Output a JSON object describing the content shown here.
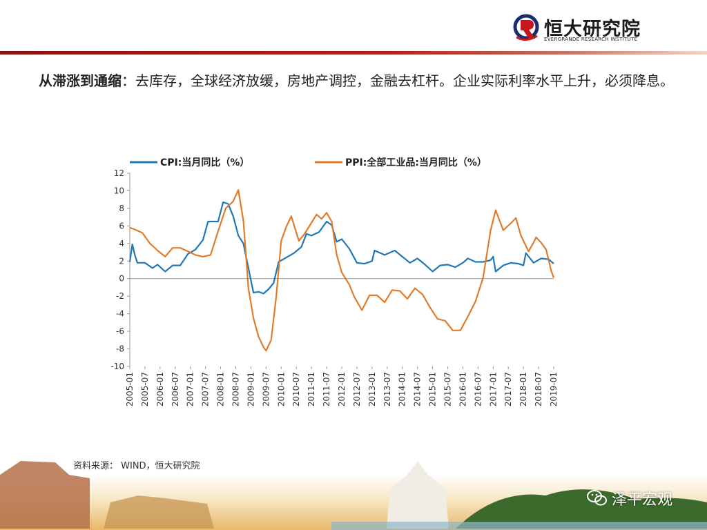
{
  "header": {
    "logo_cn": "恒大研究院",
    "logo_en": "EVERGRANDE RESEARCH INSTITUTE"
  },
  "headline": {
    "bold": "从滞涨到通缩",
    "text": "：去库存，全球经济放缓，房地产调控，金融去杠杆。企业实际利率水平上升，必须降息。"
  },
  "source": "资料来源： WIND，恒大研究院",
  "watermark": "泽平宏观",
  "colors": {
    "cpi": "#1f77b4",
    "ppi": "#e07b2a",
    "brand_red": "#b22218"
  },
  "chart_data": {
    "type": "line",
    "legend_position": "top",
    "grid": false,
    "ylim": [
      -10,
      12
    ],
    "yticks": [
      12,
      10,
      8,
      6,
      4,
      2,
      0,
      -2,
      -4,
      -6,
      -8,
      -10
    ],
    "x_start": "2005-01",
    "x_end": "2019-01",
    "xticks": [
      "2005-01",
      "2005-07",
      "2006-01",
      "2006-07",
      "2007-01",
      "2007-07",
      "2008-01",
      "2008-07",
      "2009-01",
      "2009-07",
      "2010-01",
      "2010-07",
      "2011-01",
      "2011-07",
      "2012-01",
      "2012-07",
      "2013-01",
      "2013-07",
      "2014-01",
      "2014-07",
      "2015-01",
      "2015-07",
      "2016-01",
      "2016-07",
      "2017-01",
      "2017-07",
      "2018-01",
      "2018-07",
      "2019-01"
    ],
    "series": [
      {
        "name": "CPI:当月同比（%）",
        "points": [
          [
            "2005-01",
            1.9
          ],
          [
            "2005-02",
            3.9
          ],
          [
            "2005-03",
            2.7
          ],
          [
            "2005-04",
            1.8
          ],
          [
            "2005-07",
            1.8
          ],
          [
            "2005-10",
            1.2
          ],
          [
            "2005-12",
            1.6
          ],
          [
            "2006-03",
            0.8
          ],
          [
            "2006-06",
            1.5
          ],
          [
            "2006-09",
            1.5
          ],
          [
            "2006-12",
            2.8
          ],
          [
            "2007-03",
            3.3
          ],
          [
            "2007-06",
            4.4
          ],
          [
            "2007-08",
            6.5
          ],
          [
            "2007-10",
            6.5
          ],
          [
            "2007-12",
            6.5
          ],
          [
            "2008-02",
            8.7
          ],
          [
            "2008-04",
            8.5
          ],
          [
            "2008-06",
            7.1
          ],
          [
            "2008-08",
            4.9
          ],
          [
            "2008-10",
            4.0
          ],
          [
            "2008-12",
            1.2
          ],
          [
            "2009-02",
            -1.6
          ],
          [
            "2009-04",
            -1.5
          ],
          [
            "2009-06",
            -1.7
          ],
          [
            "2009-08",
            -1.2
          ],
          [
            "2009-10",
            -0.5
          ],
          [
            "2009-12",
            1.9
          ],
          [
            "2010-03",
            2.4
          ],
          [
            "2010-06",
            2.9
          ],
          [
            "2010-09",
            3.6
          ],
          [
            "2010-11",
            5.1
          ],
          [
            "2011-01",
            4.9
          ],
          [
            "2011-04",
            5.3
          ],
          [
            "2011-07",
            6.5
          ],
          [
            "2011-09",
            6.1
          ],
          [
            "2011-11",
            4.2
          ],
          [
            "2012-01",
            4.5
          ],
          [
            "2012-04",
            3.4
          ],
          [
            "2012-07",
            1.8
          ],
          [
            "2012-10",
            1.7
          ],
          [
            "2013-01",
            2.0
          ],
          [
            "2013-02",
            3.2
          ],
          [
            "2013-06",
            2.7
          ],
          [
            "2013-10",
            3.2
          ],
          [
            "2014-01",
            2.5
          ],
          [
            "2014-04",
            1.8
          ],
          [
            "2014-07",
            2.3
          ],
          [
            "2014-10",
            1.6
          ],
          [
            "2015-01",
            0.8
          ],
          [
            "2015-04",
            1.5
          ],
          [
            "2015-07",
            1.6
          ],
          [
            "2015-10",
            1.3
          ],
          [
            "2016-01",
            1.8
          ],
          [
            "2016-03",
            2.3
          ],
          [
            "2016-06",
            1.9
          ],
          [
            "2016-09",
            1.9
          ],
          [
            "2016-12",
            2.1
          ],
          [
            "2017-01",
            2.5
          ],
          [
            "2017-02",
            0.8
          ],
          [
            "2017-05",
            1.5
          ],
          [
            "2017-08",
            1.8
          ],
          [
            "2017-11",
            1.7
          ],
          [
            "2018-01",
            1.5
          ],
          [
            "2018-02",
            2.9
          ],
          [
            "2018-05",
            1.8
          ],
          [
            "2018-08",
            2.3
          ],
          [
            "2018-11",
            2.2
          ],
          [
            "2019-01",
            1.7
          ]
        ]
      },
      {
        "name": "PPI:全部工业品:当月同比（%）",
        "points": [
          [
            "2005-01",
            5.8
          ],
          [
            "2005-03",
            5.6
          ],
          [
            "2005-06",
            5.2
          ],
          [
            "2005-09",
            4.0
          ],
          [
            "2005-12",
            3.2
          ],
          [
            "2006-03",
            2.5
          ],
          [
            "2006-06",
            3.5
          ],
          [
            "2006-09",
            3.5
          ],
          [
            "2006-12",
            3.1
          ],
          [
            "2007-03",
            2.7
          ],
          [
            "2007-06",
            2.5
          ],
          [
            "2007-09",
            2.7
          ],
          [
            "2007-12",
            5.4
          ],
          [
            "2008-03",
            8.0
          ],
          [
            "2008-06",
            8.8
          ],
          [
            "2008-08",
            10.1
          ],
          [
            "2008-10",
            6.6
          ],
          [
            "2008-12",
            -1.1
          ],
          [
            "2009-02",
            -4.5
          ],
          [
            "2009-04",
            -6.6
          ],
          [
            "2009-06",
            -7.8
          ],
          [
            "2009-07",
            -8.2
          ],
          [
            "2009-09",
            -7.0
          ],
          [
            "2009-11",
            -2.1
          ],
          [
            "2010-01",
            4.3
          ],
          [
            "2010-03",
            5.9
          ],
          [
            "2010-05",
            7.1
          ],
          [
            "2010-08",
            4.3
          ],
          [
            "2010-10",
            5.0
          ],
          [
            "2010-12",
            5.9
          ],
          [
            "2011-03",
            7.3
          ],
          [
            "2011-05",
            6.8
          ],
          [
            "2011-07",
            7.5
          ],
          [
            "2011-09",
            6.5
          ],
          [
            "2011-11",
            2.7
          ],
          [
            "2012-01",
            0.7
          ],
          [
            "2012-04",
            -0.7
          ],
          [
            "2012-06",
            -2.1
          ],
          [
            "2012-09",
            -3.6
          ],
          [
            "2012-12",
            -1.9
          ],
          [
            "2013-03",
            -1.9
          ],
          [
            "2013-06",
            -2.7
          ],
          [
            "2013-09",
            -1.3
          ],
          [
            "2013-12",
            -1.4
          ],
          [
            "2014-03",
            -2.3
          ],
          [
            "2014-06",
            -1.1
          ],
          [
            "2014-09",
            -1.8
          ],
          [
            "2014-12",
            -3.3
          ],
          [
            "2015-03",
            -4.6
          ],
          [
            "2015-06",
            -4.8
          ],
          [
            "2015-09",
            -5.9
          ],
          [
            "2015-12",
            -5.9
          ],
          [
            "2016-03",
            -4.3
          ],
          [
            "2016-06",
            -2.6
          ],
          [
            "2016-09",
            0.1
          ],
          [
            "2016-12",
            5.5
          ],
          [
            "2017-02",
            7.8
          ],
          [
            "2017-05",
            5.5
          ],
          [
            "2017-08",
            6.3
          ],
          [
            "2017-10",
            6.9
          ],
          [
            "2017-12",
            4.9
          ],
          [
            "2018-03",
            3.1
          ],
          [
            "2018-05",
            4.1
          ],
          [
            "2018-06",
            4.7
          ],
          [
            "2018-08",
            4.1
          ],
          [
            "2018-10",
            3.3
          ],
          [
            "2018-12",
            0.9
          ],
          [
            "2019-01",
            0.1
          ]
        ]
      }
    ]
  }
}
